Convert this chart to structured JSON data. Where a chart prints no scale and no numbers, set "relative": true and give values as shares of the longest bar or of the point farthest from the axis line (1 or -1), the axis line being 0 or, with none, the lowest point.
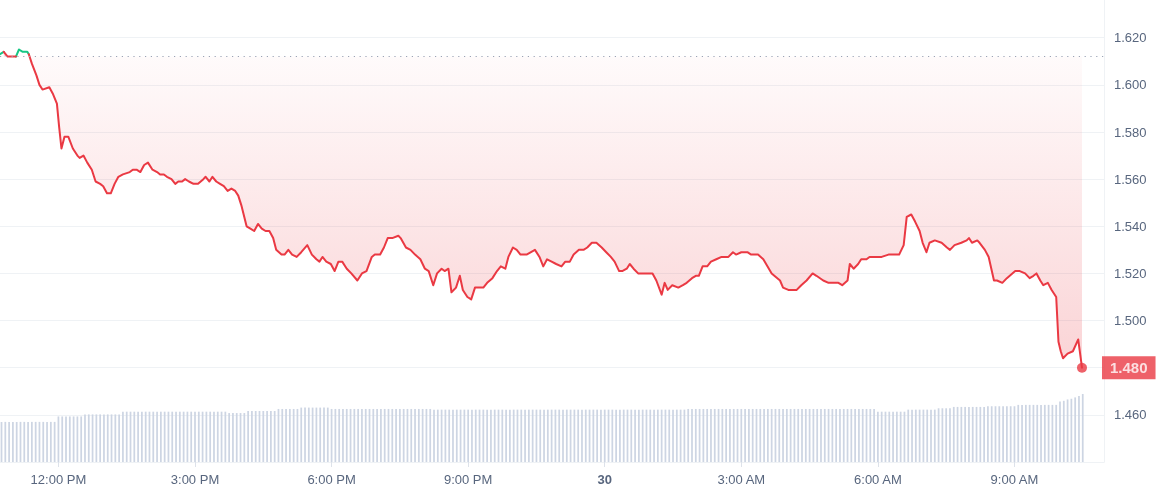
{
  "chart_data": [
    {
      "type": "line",
      "tick_labels": "y",
      "xlim": [
        "--06-29T10:43",
        "--06-30T10:58"
      ],
      "ylim": [
        1.44,
        1.636
      ],
      "yticks": [
        {
          "value": 1.46,
          "label": "1.460"
        },
        {
          "value": 1.48,
          "label": null
        },
        {
          "value": 1.5,
          "label": "1.500"
        },
        {
          "value": 1.52,
          "label": "1.520"
        },
        {
          "value": 1.54,
          "label": "1.540"
        },
        {
          "value": 1.56,
          "label": "1.560"
        },
        {
          "value": 1.58,
          "label": "1.580"
        },
        {
          "value": 1.6,
          "label": "1.600"
        },
        {
          "value": 1.62,
          "label": "1.620"
        }
      ],
      "grid": "y",
      "ref_lines": [
        {
          "axis": "y",
          "value": 1.612,
          "color": "#9aa3b5",
          "line_style": "dotted"
        }
      ],
      "series": [
        {
          "color": "#16c784",
          "x": [
            "--06-29T10:43",
            "--06-29T10:48",
            "--06-29T10:53",
            "--06-29T11:04",
            "--06-29T11:08",
            "--06-29T11:13",
            "--06-29T11:19",
            "--06-29T11:21"
          ],
          "values": [
            1.613,
            1.614,
            null,
            1.612,
            1.615,
            1.614,
            1.614,
            1.613
          ]
        },
        {
          "color": "#ea3943",
          "x": [
            "--06-29T10:48",
            "--06-29T10:53",
            "--06-29T10:58",
            "--06-29T11:04",
            "--06-29T11:08",
            "--06-29T11:21",
            "--06-29T11:25",
            "--06-29T11:31",
            "--06-29T11:35",
            "--06-29T11:39",
            "--06-29T11:48",
            "--06-29T11:53",
            "--06-29T11:58",
            "--06-29T12:01",
            "--06-29T12:04",
            "--06-29T12:08",
            "--06-29T12:13",
            "--06-29T12:19",
            "--06-29T12:25",
            "--06-29T12:28",
            "--06-29T12:33",
            "--06-29T12:38",
            "--06-29T12:44",
            "--06-29T12:49",
            "--06-29T12:55",
            "--06-29T12:59",
            "--06-29T13:04",
            "--06-29T13:09",
            "--06-29T13:14",
            "--06-29T13:19",
            "--06-29T13:25",
            "--06-29T13:34",
            "--06-29T13:38",
            "--06-29T13:43",
            "--06-29T13:48",
            "--06-29T13:53",
            "--06-29T13:58",
            "--06-29T14:04",
            "--06-29T14:10",
            "--06-29T14:14",
            "--06-29T14:19",
            "--06-29T14:23",
            "--06-29T14:29",
            "--06-29T14:34",
            "--06-29T14:38",
            "--06-29T14:43",
            "--06-29T14:47",
            "--06-29T14:52",
            "--06-29T14:58",
            "--06-29T15:04",
            "--06-29T15:11",
            "--06-29T15:14",
            "--06-29T15:19",
            "--06-29T15:23",
            "--06-29T15:28",
            "--06-29T15:33",
            "--06-29T15:38",
            "--06-29T15:43",
            "--06-29T15:48",
            "--06-29T15:53",
            "--06-29T15:57",
            "--06-29T16:01",
            "--06-29T16:08",
            "--06-29T16:13",
            "--06-29T16:18",
            "--06-29T16:23",
            "--06-29T16:28",
            "--06-29T16:33",
            "--06-29T16:38",
            "--06-29T16:43",
            "--06-29T16:47",
            "--06-29T16:54",
            "--06-29T16:58",
            "--06-29T17:03",
            "--06-29T17:08",
            "--06-29T17:14",
            "--06-29T17:20",
            "--06-29T17:28",
            "--06-29T17:34",
            "--06-29T17:40",
            "--06-29T17:44",
            "--06-29T17:48",
            "--06-29T17:53",
            "--06-29T17:59",
            "--06-29T18:04",
            "--06-29T18:09",
            "--06-29T18:14",
            "--06-29T18:20",
            "--06-29T18:26",
            "--06-29T18:34",
            "--06-29T18:40",
            "--06-29T18:46",
            "--06-29T18:53",
            "--06-29T18:57",
            "--06-29T19:04",
            "--06-29T19:09",
            "--06-29T19:14",
            "--06-29T19:20",
            "--06-29T19:28",
            "--06-29T19:31",
            "--06-29T19:38",
            "--06-29T19:44",
            "--06-29T19:50",
            "--06-29T19:57",
            "--06-29T20:03",
            "--06-29T20:08",
            "--06-29T20:14",
            "--06-29T20:19",
            "--06-29T20:25",
            "--06-29T20:29",
            "--06-29T20:34",
            "--06-29T20:38",
            "--06-29T20:44",
            "--06-29T20:49",
            "--06-29T20:53",
            "--06-29T20:59",
            "--06-29T21:04",
            "--06-29T21:09",
            "--06-29T21:14",
            "--06-29T21:20",
            "--06-29T21:25",
            "--06-29T21:32",
            "--06-29T21:38",
            "--06-29T21:43",
            "--06-29T21:49",
            "--06-29T21:53",
            "--06-29T21:59",
            "--06-29T22:04",
            "--06-29T22:09",
            "--06-29T22:17",
            "--06-29T22:28",
            "--06-29T22:34",
            "--06-29T22:39",
            "--06-29T22:44",
            "--06-29T22:50",
            "--06-29T22:56",
            "--06-29T23:03",
            "--06-29T23:08",
            "--06-29T23:14",
            "--06-29T23:19",
            "--06-29T23:26",
            "--06-29T23:32",
            "--06-29T23:37",
            "--06-29T23:43",
            "--06-29T23:49",
            "--06-29T23:56",
            "--06-30T00:02",
            "--06-30T00:08",
            "--06-30T00:13",
            "--06-30T00:19",
            "--06-30T00:23",
            "--06-30T00:29",
            "--06-30T00:33",
            "--06-30T00:38",
            "--06-30T00:44",
            "--06-30T00:50",
            "--06-30T00:57",
            "--06-30T01:03",
            "--06-30T01:08",
            "--06-30T01:15",
            "--06-30T01:19",
            "--06-30T01:23",
            "--06-30T01:29",
            "--06-30T01:37",
            "--06-30T01:43",
            "--06-30T01:48",
            "--06-30T01:55",
            "--06-30T02:00",
            "--06-30T02:04",
            "--06-30T02:09",
            "--06-30T02:15",
            "--06-30T02:20",
            "--06-30T02:27",
            "--06-30T02:34",
            "--06-30T02:43",
            "--06-30T02:49",
            "--06-30T02:53",
            "--06-30T03:00",
            "--06-30T03:08",
            "--06-30T03:13",
            "--06-30T03:22",
            "--06-30T03:29",
            "--06-30T03:40",
            "--06-30T03:51",
            "--06-30T03:55",
            "--06-30T04:02",
            "--06-30T04:13",
            "--06-30T04:19",
            "--06-30T04:26",
            "--06-30T04:34",
            "--06-30T04:39",
            "--06-30T04:48",
            "--06-30T04:55",
            "--06-30T05:01",
            "--06-30T05:08",
            "--06-30T05:13",
            "--06-30T05:20",
            "--06-30T05:23",
            "--06-30T05:28",
            "--06-30T05:34",
            "--06-30T05:38",
            "--06-30T05:45",
            "--06-30T05:49",
            "--06-30T05:58",
            "--06-30T06:05",
            "--06-30T06:14",
            "--06-30T06:21",
            "--06-30T06:28",
            "--06-30T06:34",
            "--06-30T06:38",
            "--06-30T06:44",
            "--06-30T06:49",
            "--06-30T06:55",
            "--06-30T06:59",
            "--06-30T07:04",
            "--06-30T07:08",
            "--06-30T07:15",
            "--06-30T07:24",
            "--06-30T07:31",
            "--06-30T07:35",
            "--06-30T07:41",
            "--06-30T07:50",
            "--06-30T07:57",
            "--06-30T08:00",
            "--06-30T08:04",
            "--06-30T08:11",
            "--06-30T08:14",
            "--06-30T08:21",
            "--06-30T08:26",
            "--06-30T08:33",
            "--06-30T08:37",
            "--06-30T08:44",
            "--06-30T08:50",
            "--06-30T09:01",
            "--06-30T09:07",
            "--06-30T09:14",
            "--06-30T09:20",
            "--06-30T09:25",
            "--06-30T09:29",
            "--06-30T09:34",
            "--06-30T09:38",
            "--06-30T09:44",
            "--06-30T09:49",
            "--06-30T09:55",
            "--06-30T09:58",
            "--06-30T10:01",
            "--06-30T10:04",
            "--06-30T10:10",
            "--06-30T10:17",
            "--06-30T10:24",
            "--06-30T10:29"
          ],
          "values": [
            1.614,
            1.612,
            1.612,
            1.612,
            null,
            1.613,
            1.609,
            1.604,
            1.6,
            1.598,
            1.599,
            1.596,
            1.592,
            1.582,
            1.573,
            1.578,
            1.578,
            1.573,
            1.57,
            1.569,
            1.57,
            1.567,
            1.564,
            1.559,
            1.558,
            1.557,
            1.554,
            1.554,
            1.558,
            1.561,
            1.562,
            1.563,
            1.564,
            1.564,
            1.563,
            1.566,
            1.567,
            1.564,
            1.563,
            1.562,
            1.562,
            1.561,
            1.56,
            1.558,
            1.559,
            1.559,
            1.56,
            1.559,
            1.558,
            1.558,
            1.56,
            1.561,
            1.559,
            1.561,
            1.559,
            1.558,
            1.557,
            1.555,
            1.556,
            1.555,
            1.553,
            1.549,
            1.54,
            1.539,
            1.538,
            1.541,
            1.539,
            1.538,
            1.538,
            1.535,
            1.53,
            1.528,
            1.528,
            1.53,
            1.528,
            1.527,
            1.529,
            1.532,
            1.528,
            1.526,
            1.525,
            1.527,
            1.525,
            1.524,
            1.521,
            1.525,
            1.525,
            1.522,
            1.52,
            1.517,
            1.52,
            1.521,
            1.527,
            1.528,
            1.528,
            1.531,
            1.535,
            1.535,
            1.536,
            1.535,
            1.531,
            1.53,
            1.528,
            1.526,
            1.522,
            1.521,
            1.515,
            1.52,
            1.522,
            1.521,
            1.522,
            1.512,
            1.514,
            1.519,
            1.513,
            1.51,
            1.509,
            1.514,
            1.514,
            1.514,
            1.516,
            1.518,
            1.521,
            1.523,
            1.522,
            1.527,
            1.531,
            1.53,
            1.528,
            1.528,
            1.53,
            1.527,
            1.523,
            1.526,
            1.525,
            1.524,
            1.523,
            1.525,
            1.525,
            1.528,
            1.53,
            1.53,
            1.531,
            1.533,
            1.533,
            1.531,
            1.529,
            1.527,
            1.525,
            1.521,
            1.521,
            1.522,
            1.524,
            1.522,
            1.52,
            1.52,
            1.52,
            1.52,
            1.517,
            1.511,
            1.516,
            1.513,
            1.515,
            1.514,
            1.515,
            1.516,
            1.518,
            1.519,
            1.519,
            1.523,
            1.523,
            1.525,
            1.526,
            1.527,
            1.527,
            1.529,
            1.528,
            1.529,
            1.529,
            1.528,
            1.528,
            1.526,
            1.52,
            1.517,
            1.514,
            1.513,
            1.513,
            1.515,
            1.517,
            1.52,
            1.519,
            1.517,
            1.516,
            1.516,
            1.516,
            1.515,
            1.517,
            1.524,
            1.522,
            1.524,
            1.526,
            1.526,
            1.527,
            1.527,
            1.527,
            1.528,
            1.528,
            1.528,
            1.532,
            1.544,
            1.545,
            1.542,
            1.538,
            1.533,
            1.529,
            1.533,
            1.534,
            1.533,
            1.531,
            1.53,
            1.532,
            1.533,
            1.534,
            1.535,
            1.533,
            1.534,
            1.533,
            1.53,
            1.527,
            1.517,
            1.517,
            1.516,
            1.518,
            1.521,
            1.521,
            1.52,
            1.518,
            1.519,
            1.52,
            1.517,
            1.515,
            1.516,
            1.513,
            1.51,
            1.491,
            1.487,
            1.484,
            1.486,
            1.487,
            1.492,
            1.48
          ],
          "lower": [
            1.614,
            1.612,
            1.612,
            1.612,
            null,
            1.613,
            1.609,
            1.604,
            1.6,
            1.598,
            1.599,
            1.596,
            1.592,
            1.582,
            1.573,
            1.578,
            1.578,
            1.573,
            1.57,
            1.569,
            1.57,
            1.567,
            1.564,
            1.559,
            1.558,
            1.557,
            1.554,
            1.554,
            1.558,
            1.561,
            1.562,
            1.563,
            1.564,
            1.564,
            1.563,
            1.566,
            1.567,
            1.564,
            1.563,
            1.562,
            1.562,
            1.561,
            1.56,
            1.558,
            1.559,
            1.559,
            1.56,
            1.559,
            1.558,
            1.558,
            1.56,
            1.561,
            1.559,
            1.561,
            1.559,
            1.558,
            1.557,
            1.555,
            1.556,
            1.555,
            1.553,
            1.549,
            1.54,
            1.539,
            1.538,
            1.541,
            1.539,
            1.538,
            1.538,
            1.535,
            1.53,
            1.528,
            1.528,
            1.53,
            1.528,
            1.527,
            1.529,
            1.532,
            1.528,
            1.526,
            1.525,
            1.527,
            1.525,
            1.524,
            1.521,
            1.525,
            1.525,
            1.522,
            1.52,
            1.517,
            1.52,
            1.521,
            1.527,
            1.528,
            1.528,
            1.531,
            1.535,
            1.535,
            1.536,
            1.535,
            1.531,
            1.53,
            1.528,
            1.526,
            1.522,
            1.521,
            1.515,
            1.52,
            1.522,
            1.521,
            1.522,
            1.512,
            1.514,
            1.519,
            1.513,
            1.51,
            1.509,
            1.514,
            1.514,
            1.514,
            1.516,
            1.518,
            1.521,
            1.523,
            1.522,
            1.527,
            1.531,
            1.53,
            1.528,
            1.528,
            1.53,
            1.527,
            1.523,
            1.526,
            1.525,
            1.524,
            1.523,
            1.525,
            1.525,
            1.528,
            1.53,
            1.53,
            1.531,
            1.533,
            1.533,
            1.531,
            1.529,
            1.527,
            1.525,
            1.521,
            1.521,
            1.522,
            1.524,
            1.522,
            1.52,
            1.52,
            1.52,
            1.52,
            1.517,
            1.511,
            1.516,
            1.513,
            1.515,
            1.514,
            1.515,
            1.516,
            1.518,
            1.519,
            1.519,
            1.523,
            1.523,
            1.525,
            1.526,
            1.527,
            1.527,
            1.529,
            1.528,
            1.529,
            1.529,
            1.528,
            1.528,
            1.526,
            1.52,
            1.517,
            1.514,
            1.513,
            1.513,
            1.515,
            1.517,
            1.52,
            1.519,
            1.517,
            1.516,
            1.516,
            1.516,
            1.515,
            1.517,
            1.524,
            1.522,
            1.524,
            1.526,
            1.526,
            1.527,
            1.527,
            1.527,
            1.528,
            1.528,
            1.528,
            1.532,
            1.544,
            1.545,
            1.542,
            1.538,
            1.533,
            1.529,
            1.533,
            1.534,
            1.533,
            1.531,
            1.53,
            1.532,
            1.533,
            1.534,
            1.535,
            1.533,
            1.534,
            1.533,
            1.53,
            1.527,
            1.517,
            1.517,
            1.516,
            1.518,
            1.521,
            1.521,
            1.52,
            1.518,
            1.519,
            1.52,
            1.517,
            1.515,
            1.516,
            1.513,
            1.51,
            1.491,
            1.487,
            1.484,
            1.486,
            1.487,
            1.492,
            1.48
          ],
          "upper": [
            1.612,
            1.612,
            1.612,
            1.612,
            null,
            1.612,
            1.612,
            1.612,
            1.612,
            1.612,
            1.612,
            1.612,
            1.612,
            1.612,
            1.612,
            1.612,
            1.612,
            1.612,
            1.612,
            1.612,
            1.612,
            1.612,
            1.612,
            1.612,
            1.612,
            1.612,
            1.612,
            1.612,
            1.612,
            1.612,
            1.612,
            1.612,
            1.612,
            1.612,
            1.612,
            1.612,
            1.612,
            1.612,
            1.612,
            1.612,
            1.612,
            1.612,
            1.612,
            1.612,
            1.612,
            1.612,
            1.612,
            1.612,
            1.612,
            1.612,
            1.612,
            1.612,
            1.612,
            1.612,
            1.612,
            1.612,
            1.612,
            1.612,
            1.612,
            1.612,
            1.612,
            1.612,
            1.612,
            1.612,
            1.612,
            1.612,
            1.612,
            1.612,
            1.612,
            1.612,
            1.612,
            1.612,
            1.612,
            1.612,
            1.612,
            1.612,
            1.612,
            1.612,
            1.612,
            1.612,
            1.612,
            1.612,
            1.612,
            1.612,
            1.612,
            1.612,
            1.612,
            1.612,
            1.612,
            1.612,
            1.612,
            1.612,
            1.612,
            1.612,
            1.612,
            1.612,
            1.612,
            1.612,
            1.612,
            1.612,
            1.612,
            1.612,
            1.612,
            1.612,
            1.612,
            1.612,
            1.612,
            1.612,
            1.612,
            1.612,
            1.612,
            1.612,
            1.612,
            1.612,
            1.612,
            1.612,
            1.612,
            1.612,
            1.612,
            1.612,
            1.612,
            1.612,
            1.612,
            1.612,
            1.612,
            1.612,
            1.612,
            1.612,
            1.612,
            1.612,
            1.612,
            1.612,
            1.612,
            1.612,
            1.612,
            1.612,
            1.612,
            1.612,
            1.612,
            1.612,
            1.612,
            1.612,
            1.612,
            1.612,
            1.612,
            1.612,
            1.612,
            1.612,
            1.612,
            1.612,
            1.612,
            1.612,
            1.612,
            1.612,
            1.612,
            1.612,
            1.612,
            1.612,
            1.612,
            1.612,
            1.612,
            1.612,
            1.612,
            1.612,
            1.612,
            1.612,
            1.612,
            1.612,
            1.612,
            1.612,
            1.612,
            1.612,
            1.612,
            1.612,
            1.612,
            1.612,
            1.612,
            1.612,
            1.612,
            1.612,
            1.612,
            1.612,
            1.612,
            1.612,
            1.612,
            1.612,
            1.612,
            1.612,
            1.612,
            1.612,
            1.612,
            1.612,
            1.612,
            1.612,
            1.612,
            1.612,
            1.612,
            1.612,
            1.612,
            1.612,
            1.612,
            1.612,
            1.612,
            1.612,
            1.612,
            1.612,
            1.612,
            1.612,
            1.612,
            1.612,
            1.612,
            1.612,
            1.612,
            1.612,
            1.612,
            1.612,
            1.612,
            1.612,
            1.612,
            1.612,
            1.612,
            1.612,
            1.612,
            1.612,
            1.612,
            1.612,
            1.612,
            1.612,
            1.612,
            1.612,
            1.612,
            1.612,
            1.612,
            1.612,
            1.612,
            1.612,
            1.612,
            1.612,
            1.612,
            1.612,
            1.612,
            1.612,
            1.612,
            1.612,
            1.612,
            1.612,
            1.612,
            1.612,
            1.612,
            1.612,
            1.612
          ]
        },
        {
          "type": "scatter",
          "color": "#ea3943",
          "x": [
            "--06-30T10:29"
          ],
          "values": [
            1.48
          ],
          "value_labels": [
            "1.480"
          ]
        }
      ]
    },
    {
      "type": "bar",
      "relative": true,
      "color": "#cdd5e3",
      "xlim": [
        "--06-29T10:43",
        "--06-30T10:58"
      ],
      "xticks": [
        {
          "value": "--06-29T12:00",
          "label": "12:00 PM"
        },
        {
          "value": "--06-29T15:00",
          "label": "3:00 PM"
        },
        {
          "value": "--06-29T18:00",
          "label": "6:00 PM"
        },
        {
          "value": "--06-29T21:00",
          "label": "9:00 PM"
        },
        {
          "value": "--06-30T00:00",
          "label": "30"
        },
        {
          "value": "--06-30T03:00",
          "label": "3:00 AM"
        },
        {
          "value": "--06-30T06:00",
          "label": "6:00 AM"
        },
        {
          "value": "--06-30T09:00",
          "label": "9:00 AM"
        }
      ],
      "x": [
        "--06-29T10:45",
        "--06-29T10:50",
        "--06-29T10:55",
        "--06-29T11:00",
        "--06-29T11:05",
        "--06-29T11:10",
        "--06-29T11:15",
        "--06-29T11:20",
        "--06-29T11:25",
        "--06-29T11:30",
        "--06-29T11:35",
        "--06-29T11:40",
        "--06-29T11:45",
        "--06-29T11:50",
        "--06-29T11:55",
        "--06-29T12:00",
        "--06-29T12:05",
        "--06-29T12:10",
        "--06-29T12:15",
        "--06-29T12:20",
        "--06-29T12:25",
        "--06-29T12:30",
        "--06-29T12:35",
        "--06-29T12:40",
        "--06-29T12:45",
        "--06-29T12:50",
        "--06-29T12:55",
        "--06-29T13:00",
        "--06-29T13:05",
        "--06-29T13:10",
        "--06-29T13:15",
        "--06-29T13:20",
        "--06-29T13:25",
        "--06-29T13:30",
        "--06-29T13:35",
        "--06-29T13:40",
        "--06-29T13:45",
        "--06-29T13:50",
        "--06-29T13:55",
        "--06-29T14:00",
        "--06-29T14:05",
        "--06-29T14:10",
        "--06-29T14:15",
        "--06-29T14:20",
        "--06-29T14:25",
        "--06-29T14:30",
        "--06-29T14:35",
        "--06-29T14:40",
        "--06-29T14:45",
        "--06-29T14:50",
        "--06-29T14:55",
        "--06-29T15:00",
        "--06-29T15:05",
        "--06-29T15:10",
        "--06-29T15:15",
        "--06-29T15:20",
        "--06-29T15:25",
        "--06-29T15:30",
        "--06-29T15:35",
        "--06-29T15:40",
        "--06-29T15:45",
        "--06-29T15:50",
        "--06-29T15:55",
        "--06-29T16:00",
        "--06-29T16:05",
        "--06-29T16:10",
        "--06-29T16:15",
        "--06-29T16:20",
        "--06-29T16:25",
        "--06-29T16:30",
        "--06-29T16:35",
        "--06-29T16:40",
        "--06-29T16:45",
        "--06-29T16:50",
        "--06-29T16:55",
        "--06-29T17:00",
        "--06-29T17:05",
        "--06-29T17:10",
        "--06-29T17:15",
        "--06-29T17:20",
        "--06-29T17:25",
        "--06-29T17:30",
        "--06-29T17:35",
        "--06-29T17:40",
        "--06-29T17:45",
        "--06-29T17:50",
        "--06-29T17:55",
        "--06-29T18:00",
        "--06-29T18:05",
        "--06-29T18:10",
        "--06-29T18:15",
        "--06-29T18:20",
        "--06-29T18:25",
        "--06-29T18:30",
        "--06-29T18:35",
        "--06-29T18:40",
        "--06-29T18:45",
        "--06-29T18:50",
        "--06-29T18:55",
        "--06-29T19:00",
        "--06-29T19:05",
        "--06-29T19:10",
        "--06-29T19:15",
        "--06-29T19:20",
        "--06-29T19:25",
        "--06-29T19:30",
        "--06-29T19:35",
        "--06-29T19:40",
        "--06-29T19:45",
        "--06-29T19:50",
        "--06-29T19:55",
        "--06-29T20:00",
        "--06-29T20:05",
        "--06-29T20:10",
        "--06-29T20:15",
        "--06-29T20:20",
        "--06-29T20:25",
        "--06-29T20:30",
        "--06-29T20:35",
        "--06-29T20:40",
        "--06-29T20:45",
        "--06-29T20:50",
        "--06-29T20:55",
        "--06-29T21:00",
        "--06-29T21:05",
        "--06-29T21:10",
        "--06-29T21:15",
        "--06-29T21:20",
        "--06-29T21:25",
        "--06-29T21:30",
        "--06-29T21:35",
        "--06-29T21:40",
        "--06-29T21:45",
        "--06-29T21:50",
        "--06-29T21:55",
        "--06-29T22:00",
        "--06-29T22:05",
        "--06-29T22:10",
        "--06-29T22:15",
        "--06-29T22:20",
        "--06-29T22:25",
        "--06-29T22:30",
        "--06-29T22:35",
        "--06-29T22:40",
        "--06-29T22:45",
        "--06-29T22:50",
        "--06-29T22:55",
        "--06-29T23:00",
        "--06-29T23:05",
        "--06-29T23:10",
        "--06-29T23:15",
        "--06-29T23:20",
        "--06-29T23:25",
        "--06-29T23:30",
        "--06-29T23:35",
        "--06-29T23:40",
        "--06-29T23:45",
        "--06-29T23:50",
        "--06-29T23:55",
        "--06-30T00:00",
        "--06-30T00:05",
        "--06-30T00:10",
        "--06-30T00:15",
        "--06-30T00:20",
        "--06-30T00:25",
        "--06-30T00:30",
        "--06-30T00:35",
        "--06-30T00:40",
        "--06-30T00:45",
        "--06-30T00:50",
        "--06-30T00:55",
        "--06-30T01:00",
        "--06-30T01:05",
        "--06-30T01:10",
        "--06-30T01:15",
        "--06-30T01:20",
        "--06-30T01:25",
        "--06-30T01:30",
        "--06-30T01:35",
        "--06-30T01:40",
        "--06-30T01:45",
        "--06-30T01:50",
        "--06-30T01:55",
        "--06-30T02:00",
        "--06-30T02:05",
        "--06-30T02:10",
        "--06-30T02:15",
        "--06-30T02:20",
        "--06-30T02:25",
        "--06-30T02:30",
        "--06-30T02:35",
        "--06-30T02:40",
        "--06-30T02:45",
        "--06-30T02:50",
        "--06-30T02:55",
        "--06-30T03:00",
        "--06-30T03:05",
        "--06-30T03:10",
        "--06-30T03:15",
        "--06-30T03:20",
        "--06-30T03:25",
        "--06-30T03:30",
        "--06-30T03:35",
        "--06-30T03:40",
        "--06-30T03:45",
        "--06-30T03:50",
        "--06-30T03:55",
        "--06-30T04:00",
        "--06-30T04:05",
        "--06-30T04:10",
        "--06-30T04:15",
        "--06-30T04:20",
        "--06-30T04:25",
        "--06-30T04:30",
        "--06-30T04:35",
        "--06-30T04:40",
        "--06-30T04:45",
        "--06-30T04:50",
        "--06-30T04:55",
        "--06-30T05:00",
        "--06-30T05:05",
        "--06-30T05:10",
        "--06-30T05:15",
        "--06-30T05:20",
        "--06-30T05:25",
        "--06-30T05:30",
        "--06-30T05:35",
        "--06-30T05:40",
        "--06-30T05:45",
        "--06-30T05:50",
        "--06-30T05:55",
        "--06-30T06:00",
        "--06-30T06:05",
        "--06-30T06:10",
        "--06-30T06:15",
        "--06-30T06:20",
        "--06-30T06:25",
        "--06-30T06:30",
        "--06-30T06:35",
        "--06-30T06:40",
        "--06-30T06:45",
        "--06-30T06:50",
        "--06-30T06:55",
        "--06-30T07:00",
        "--06-30T07:05",
        "--06-30T07:10",
        "--06-30T07:15",
        "--06-30T07:20",
        "--06-30T07:25",
        "--06-30T07:30",
        "--06-30T07:35",
        "--06-30T07:40",
        "--06-30T07:45",
        "--06-30T07:50",
        "--06-30T07:55",
        "--06-30T08:00",
        "--06-30T08:05",
        "--06-30T08:10",
        "--06-30T08:15",
        "--06-30T08:20",
        "--06-30T08:25",
        "--06-30T08:30",
        "--06-30T08:35",
        "--06-30T08:40",
        "--06-30T08:45",
        "--06-30T08:50",
        "--06-30T08:55",
        "--06-30T09:00",
        "--06-30T09:05",
        "--06-30T09:10",
        "--06-30T09:15",
        "--06-30T09:20",
        "--06-30T09:25",
        "--06-30T09:30",
        "--06-30T09:35",
        "--06-30T09:40",
        "--06-30T09:45",
        "--06-30T09:50",
        "--06-30T09:55",
        "--06-30T10:00",
        "--06-30T10:05",
        "--06-30T10:10",
        "--06-30T10:15",
        "--06-30T10:20",
        "--06-30T10:25",
        "--06-30T10:30"
      ],
      "values": [
        0.59,
        0.59,
        0.59,
        0.59,
        0.59,
        0.59,
        0.59,
        0.59,
        0.59,
        0.59,
        0.59,
        0.59,
        0.59,
        0.59,
        0.59,
        0.67,
        0.67,
        0.67,
        0.67,
        0.67,
        0.67,
        0.67,
        0.7,
        0.7,
        0.7,
        0.7,
        0.7,
        0.7,
        0.7,
        0.7,
        0.7,
        0.7,
        0.74,
        0.74,
        0.74,
        0.74,
        0.74,
        0.74,
        0.74,
        0.74,
        0.74,
        0.74,
        0.74,
        0.74,
        0.74,
        0.74,
        0.74,
        0.74,
        0.74,
        0.74,
        0.74,
        0.74,
        0.74,
        0.74,
        0.74,
        0.74,
        0.74,
        0.74,
        0.74,
        0.74,
        0.72,
        0.72,
        0.72,
        0.72,
        0.72,
        0.75,
        0.75,
        0.75,
        0.75,
        0.75,
        0.75,
        0.75,
        0.75,
        0.78,
        0.78,
        0.78,
        0.78,
        0.78,
        0.78,
        0.8,
        0.8,
        0.8,
        0.8,
        0.8,
        0.8,
        0.8,
        0.8,
        0.78,
        0.78,
        0.78,
        0.78,
        0.78,
        0.78,
        0.78,
        0.78,
        0.78,
        0.78,
        0.78,
        0.78,
        0.78,
        0.78,
        0.78,
        0.78,
        0.78,
        0.78,
        0.78,
        0.78,
        0.78,
        0.78,
        0.78,
        0.78,
        0.78,
        0.78,
        0.78,
        0.77,
        0.77,
        0.77,
        0.77,
        0.77,
        0.77,
        0.77,
        0.77,
        0.77,
        0.77,
        0.77,
        0.77,
        0.77,
        0.77,
        0.77,
        0.77,
        0.77,
        0.77,
        0.77,
        0.77,
        0.77,
        0.77,
        0.77,
        0.77,
        0.77,
        0.77,
        0.77,
        0.77,
        0.77,
        0.77,
        0.77,
        0.77,
        0.77,
        0.77,
        0.77,
        0.77,
        0.77,
        0.77,
        0.77,
        0.77,
        0.77,
        0.77,
        0.77,
        0.77,
        0.77,
        0.77,
        0.77,
        0.77,
        0.77,
        0.77,
        0.77,
        0.77,
        0.77,
        0.77,
        0.77,
        0.77,
        0.77,
        0.77,
        0.77,
        0.77,
        0.77,
        0.77,
        0.77,
        0.77,
        0.77,
        0.77,
        0.77,
        0.78,
        0.78,
        0.78,
        0.78,
        0.78,
        0.78,
        0.78,
        0.78,
        0.78,
        0.78,
        0.78,
        0.78,
        0.78,
        0.78,
        0.78,
        0.78,
        0.78,
        0.78,
        0.78,
        0.78,
        0.78,
        0.78,
        0.78,
        0.78,
        0.78,
        0.78,
        0.78,
        0.78,
        0.78,
        0.78,
        0.78,
        0.78,
        0.78,
        0.78,
        0.78,
        0.78,
        0.78,
        0.78,
        0.78,
        0.78,
        0.78,
        0.78,
        0.78,
        0.78,
        0.78,
        0.78,
        0.78,
        0.78,
        0.78,
        0.78,
        0.74,
        0.74,
        0.74,
        0.74,
        0.74,
        0.74,
        0.74,
        0.74,
        0.77,
        0.77,
        0.77,
        0.77,
        0.77,
        0.77,
        0.77,
        0.77,
        0.79,
        0.79,
        0.79,
        0.79,
        0.81,
        0.81,
        0.81,
        0.81,
        0.81,
        0.81,
        0.81,
        0.81,
        0.81,
        0.82,
        0.82,
        0.82,
        0.82,
        0.82,
        0.82,
        0.82,
        0.82,
        0.84,
        0.84,
        0.84,
        0.84,
        0.84,
        0.84,
        0.84,
        0.84,
        0.84,
        0.84,
        0.84,
        0.89,
        0.9,
        0.92,
        0.93,
        0.95,
        0.97,
        1
      ]
    }
  ]
}
